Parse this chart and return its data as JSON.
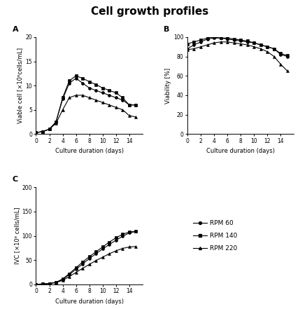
{
  "title": "Cell growth profiles",
  "days": [
    0,
    1,
    2,
    3,
    4,
    5,
    6,
    7,
    8,
    9,
    10,
    11,
    12,
    13,
    14,
    15
  ],
  "viable_cell": {
    "RPM60": [
      0.3,
      0.5,
      1.0,
      2.5,
      7.2,
      10.5,
      11.5,
      10.5,
      9.5,
      9.0,
      8.5,
      8.0,
      7.5,
      7.0,
      6.0,
      6.0
    ],
    "RPM140": [
      0.3,
      0.5,
      1.0,
      2.5,
      7.5,
      11.0,
      12.0,
      11.5,
      10.8,
      10.2,
      9.5,
      9.0,
      8.5,
      7.5,
      6.0,
      6.0
    ],
    "RPM220": [
      0.3,
      0.5,
      1.0,
      2.2,
      5.0,
      7.5,
      8.0,
      8.0,
      7.5,
      7.0,
      6.5,
      6.0,
      5.5,
      5.0,
      3.8,
      3.5
    ]
  },
  "viability": {
    "RPM60": [
      88,
      92,
      95,
      98,
      99,
      99,
      98,
      97,
      96,
      95,
      94,
      92,
      90,
      88,
      82,
      80
    ],
    "RPM140": [
      93,
      95,
      97,
      99,
      100,
      99,
      99,
      98,
      97,
      96,
      94,
      92,
      90,
      88,
      83,
      81
    ],
    "RPM220": [
      87,
      88,
      90,
      92,
      94,
      95,
      95,
      94,
      93,
      92,
      90,
      88,
      85,
      80,
      72,
      65
    ]
  },
  "ivc": {
    "RPM60": [
      0,
      0.5,
      1.5,
      4.0,
      10.0,
      20.0,
      31.0,
      42.0,
      53.0,
      63.0,
      73.0,
      82.0,
      91.0,
      99.0,
      106.0,
      109.0
    ],
    "RPM140": [
      0,
      0.5,
      1.5,
      4.0,
      11.0,
      22.0,
      34.0,
      46.0,
      57.0,
      67.0,
      77.0,
      87.0,
      96.0,
      103.0,
      108.0,
      109.0
    ],
    "RPM220": [
      0,
      0.5,
      1.5,
      3.5,
      8.0,
      16.0,
      24.5,
      33.0,
      41.0,
      49.0,
      56.0,
      63.0,
      69.0,
      74.0,
      77.0,
      78.0
    ]
  },
  "colors": {
    "RPM60": "#000000",
    "RPM140": "#000000",
    "RPM220": "#000000"
  },
  "markers": {
    "RPM60": "o",
    "RPM140": "s",
    "RPM220": "^"
  },
  "legend_labels": [
    "RPM 60",
    "RPM 140",
    "RPM 220"
  ],
  "xlabel": "Culture duration (days)",
  "ylabel_A": "Viable cell [×10⁶cells/mL]",
  "ylabel_B": "Viability [%]",
  "ylabel_C": "IVC [×10⁶ cells/mL]",
  "xlim": [
    0,
    16
  ],
  "ylim_A": [
    0,
    20
  ],
  "ylim_B": [
    0,
    100
  ],
  "ylim_C": [
    0,
    200
  ],
  "xticks": [
    0,
    2,
    4,
    6,
    8,
    10,
    12,
    14
  ],
  "yticks_A": [
    0,
    5,
    10,
    15,
    20
  ],
  "yticks_B": [
    0,
    20,
    40,
    60,
    80,
    100
  ],
  "yticks_C": [
    0,
    50,
    100,
    150,
    200
  ],
  "background_color": "#ffffff",
  "title_fontsize": 11,
  "label_fontsize": 6,
  "tick_fontsize": 5.5,
  "legend_fontsize": 6.5,
  "linewidth": 0.8,
  "markersize": 2.8
}
